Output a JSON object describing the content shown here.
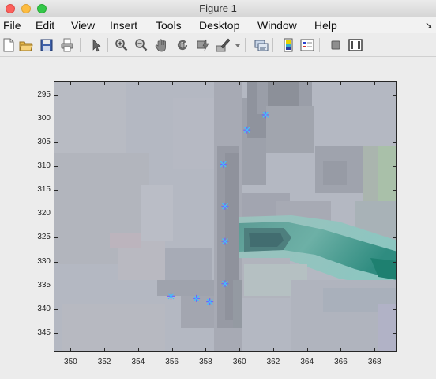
{
  "window": {
    "title": "Figure 1"
  },
  "menu": {
    "items": [
      "File",
      "Edit",
      "View",
      "Insert",
      "Tools",
      "Desktop",
      "Window",
      "Help"
    ],
    "overflow_icon": "arrow-icon"
  },
  "toolbar": {
    "icons": [
      "new-figure-icon",
      "open-file-icon",
      "save-icon",
      "print-icon",
      "select-arrow-icon",
      "zoom-in-icon",
      "zoom-out-icon",
      "pan-hand-icon",
      "rotate-3d-icon",
      "data-cursor-icon",
      "brush-icon",
      "brush-dropdown-icon",
      "link-plot-icon",
      "colorbar-icon",
      "legend-icon",
      "hide-plot-tools-icon",
      "show-plot-tools-icon"
    ]
  },
  "chart_data": {
    "type": "scatter",
    "background": "image",
    "marker": "*",
    "marker_colors": [
      "#6a6aff",
      "#40c0ff"
    ],
    "xlim": [
      349,
      369.3
    ],
    "ylim": [
      349,
      292.2
    ],
    "y_reversed": true,
    "xticks": [
      350,
      352,
      354,
      356,
      358,
      360,
      362,
      364,
      366,
      368
    ],
    "yticks": [
      295,
      300,
      305,
      310,
      315,
      320,
      325,
      330,
      335,
      340,
      345
    ],
    "x": [
      361.5,
      360.4,
      359.0,
      359.1,
      359.1,
      359.1,
      358.2,
      357.4,
      355.9
    ],
    "y": [
      299,
      302.2,
      309.4,
      318.2,
      325.6,
      334.5,
      338.3,
      337.6,
      337.1
    ],
    "xlabel": "",
    "ylabel": "",
    "title": ""
  }
}
